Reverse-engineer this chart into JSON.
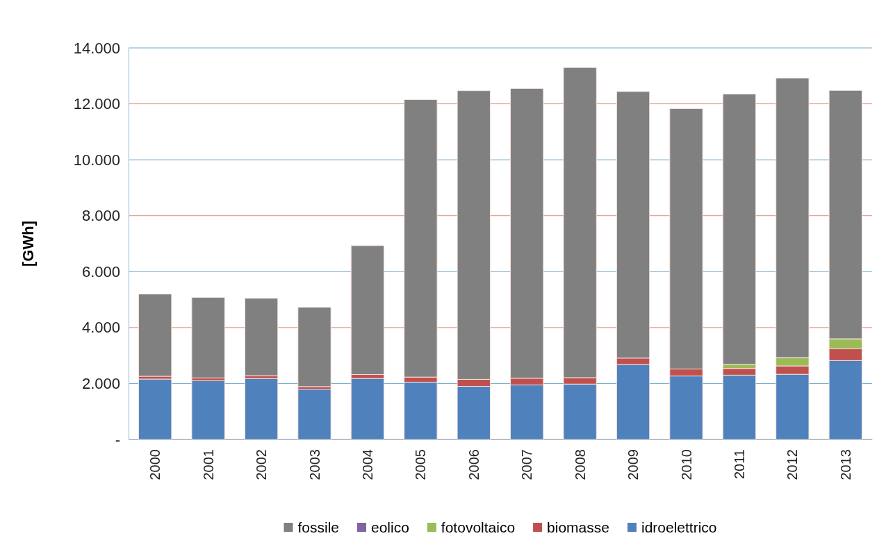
{
  "chart_data": {
    "type": "bar",
    "stacked": true,
    "ylabel": "[GWh]",
    "categories": [
      "2000",
      "2001",
      "2002",
      "2003",
      "2004",
      "2005",
      "2006",
      "2007",
      "2008",
      "2009",
      "2010",
      "2011",
      "2012",
      "2013"
    ],
    "series": [
      {
        "name": "idroelettrico",
        "color": "#4f81bd",
        "values": [
          2160,
          2100,
          2180,
          1800,
          2180,
          2050,
          1900,
          1950,
          1980,
          2680,
          2270,
          2300,
          2330,
          2820
        ]
      },
      {
        "name": "biomasse",
        "color": "#c0504d",
        "values": [
          100,
          100,
          100,
          90,
          140,
          180,
          250,
          240,
          230,
          230,
          250,
          240,
          300,
          420
        ]
      },
      {
        "name": "fotovoltaico",
        "color": "#9bbb59",
        "values": [
          0,
          0,
          0,
          0,
          0,
          0,
          0,
          0,
          0,
          0,
          0,
          150,
          300,
          360
        ]
      },
      {
        "name": "eolico",
        "color": "#8064a2",
        "values": [
          0,
          0,
          0,
          0,
          0,
          0,
          0,
          0,
          0,
          0,
          0,
          0,
          0,
          0
        ]
      },
      {
        "name": "fossile",
        "color": "#808080",
        "values": [
          2940,
          2880,
          2770,
          2840,
          4610,
          9920,
          10320,
          10360,
          11090,
          9530,
          9310,
          9660,
          9990,
          8880
        ]
      }
    ],
    "ylim": [
      0,
      14000
    ],
    "yticks": [
      {
        "value": 0,
        "label": "-"
      },
      {
        "value": 2000,
        "label": "2.000"
      },
      {
        "value": 4000,
        "label": "4.000"
      },
      {
        "value": 6000,
        "label": "6.000"
      },
      {
        "value": 8000,
        "label": "8.000"
      },
      {
        "value": 10000,
        "label": "10.000"
      },
      {
        "value": 12000,
        "label": "12.000"
      },
      {
        "value": 14000,
        "label": "14.000"
      }
    ],
    "grid": "y",
    "legend": "bottom"
  }
}
